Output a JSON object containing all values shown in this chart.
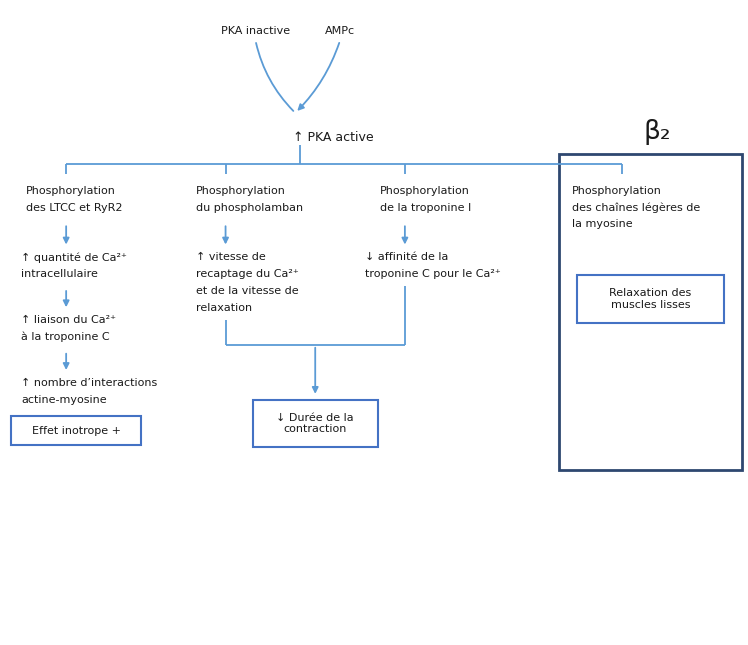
{
  "fig_width": 7.48,
  "fig_height": 6.45,
  "bg_color": "#ffffff",
  "arrow_color": "#5B9BD5",
  "text_color": "#1a1a1a",
  "box_color": "#2E4770",
  "inner_box_color": "#4472C4",
  "font_size": 8.0,
  "title_top_left": "PKA inactive",
  "title_top_right": "AMPc",
  "pka_active_label": "↑ PKA active",
  "beta2_label": "β₂",
  "branch1_line1": "Phosphorylation",
  "branch1_line2": "des LTCC et RyR2",
  "branch2_line1": "Phosphorylation",
  "branch2_line2": "du phospholamban",
  "branch3_line1": "Phosphorylation",
  "branch3_line2": "de la troponine I",
  "branch4_line1": "Phosphorylation",
  "branch4_line2": "des chaînes légères de",
  "branch4_line3": "la myosine",
  "col1_t1": "↑ quantité de Ca²⁺",
  "col1_t2": "intracellulaire",
  "col1_t3": "↑ liaison du Ca²⁺",
  "col1_t4": "à la troponine C",
  "col1_t5": "↑ nombre d’interactions",
  "col1_t6": "actine-myosine",
  "col1_box": "Effet inotrope +",
  "col2_t1": "↑ vitesse de",
  "col2_t2": "recaptage du Ca²⁺",
  "col2_t3": "et de la vitesse de",
  "col2_t4": "relaxation",
  "col3_t1": "↓ affinité de la",
  "col3_t2": "troponine C pour le Ca²⁺",
  "bottom_box_text": "↓ Durée de la\ncontraction",
  "relaxation_box_text": "Relaxation des\nmuscles lisses"
}
